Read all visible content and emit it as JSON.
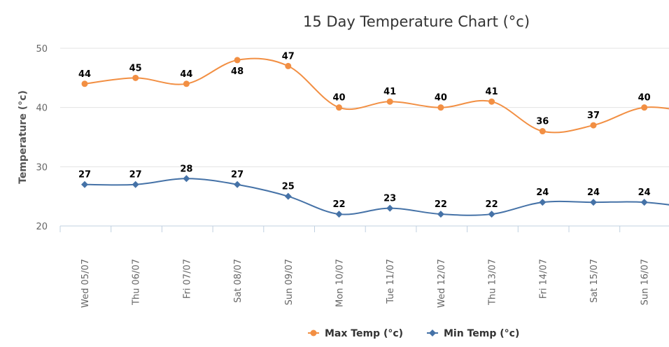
{
  "chart_data": {
    "type": "line",
    "title": "15 Day Temperature Chart (°c)",
    "xlabel": "",
    "ylabel": "Temperature (°c)",
    "ylim": [
      20,
      50
    ],
    "yticks": [
      20,
      30,
      40,
      50
    ],
    "categories": [
      "Wed 05/07",
      "Thu 06/07",
      "Fri 07/07",
      "Sat 08/07",
      "Sun 09/07",
      "Mon 10/07",
      "Tue 11/07",
      "Wed 12/07",
      "Thu 13/07",
      "Fri 14/07",
      "Sat 15/07",
      "Sun 16/07"
    ],
    "grid": "horizontal",
    "legend_position": "bottom-center",
    "series": [
      {
        "name": "Max Temp (°c)",
        "color": "#F28F43",
        "marker": "circle",
        "values": [
          44,
          45,
          44,
          48,
          47,
          40,
          41,
          40,
          41,
          36,
          37,
          40
        ],
        "trailing_value": 39
      },
      {
        "name": "Min Temp (°c)",
        "color": "#4572A7",
        "marker": "diamond",
        "values": [
          27,
          27,
          28,
          27,
          25,
          22,
          23,
          22,
          22,
          24,
          24,
          24
        ],
        "trailing_value": 23
      }
    ]
  }
}
